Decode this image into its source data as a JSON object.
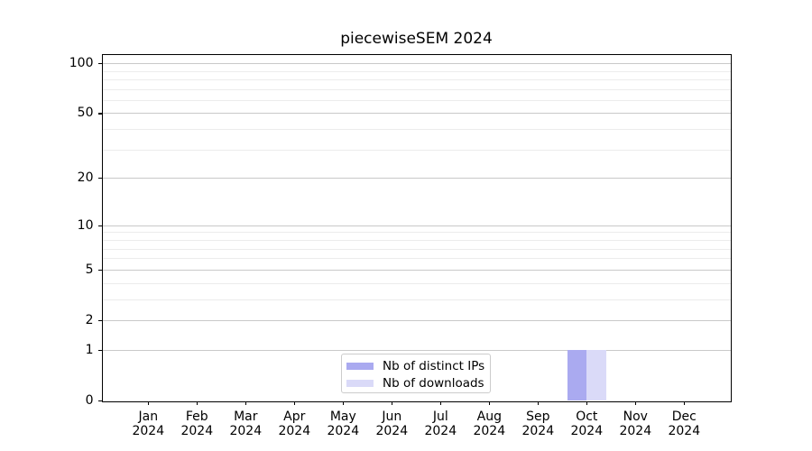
{
  "chart_data": {
    "type": "bar",
    "title": "piecewiseSEM 2024",
    "categories": [
      {
        "month": "Jan",
        "year": "2024"
      },
      {
        "month": "Feb",
        "year": "2024"
      },
      {
        "month": "Mar",
        "year": "2024"
      },
      {
        "month": "Apr",
        "year": "2024"
      },
      {
        "month": "May",
        "year": "2024"
      },
      {
        "month": "Jun",
        "year": "2024"
      },
      {
        "month": "Jul",
        "year": "2024"
      },
      {
        "month": "Aug",
        "year": "2024"
      },
      {
        "month": "Sep",
        "year": "2024"
      },
      {
        "month": "Oct",
        "year": "2024"
      },
      {
        "month": "Nov",
        "year": "2024"
      },
      {
        "month": "Dec",
        "year": "2024"
      }
    ],
    "series": [
      {
        "name": "Nb of distinct IPs",
        "color": "#aaaaf0",
        "values": [
          0,
          0,
          0,
          0,
          0,
          0,
          0,
          0,
          0,
          1,
          0,
          0
        ]
      },
      {
        "name": "Nb of downloads",
        "color": "#dadaf8",
        "values": [
          0,
          0,
          0,
          0,
          0,
          0,
          0,
          0,
          0,
          1,
          0,
          0
        ]
      }
    ],
    "xlabel": "",
    "ylabel": "",
    "yscale": "log1p",
    "ylim": [
      0,
      113.4
    ],
    "y_tick_values": [
      0,
      1,
      2,
      5,
      10,
      20,
      50,
      100
    ],
    "y_minor_gridlines": [
      3,
      4,
      6,
      7,
      8,
      9,
      30,
      40,
      60,
      70,
      80,
      90
    ],
    "grid": "horizontal",
    "legend_position": "bottom-center"
  },
  "colors": {
    "bar_distinct_ips": "#aaaaf0",
    "bar_downloads": "#dadaf8",
    "grid_major": "#c9c9c9",
    "grid_minor": "#ececec",
    "spine": "#000000",
    "legend_border": "#cccccc",
    "background": "#ffffff"
  }
}
